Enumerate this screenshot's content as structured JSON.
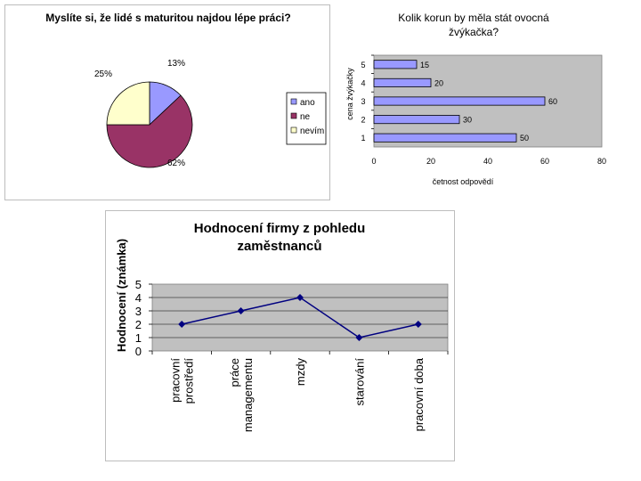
{
  "chart_data": [
    {
      "type": "pie",
      "title": "Myslíte si, že lidé s maturitou najdou lépe práci?",
      "categories": [
        "ano",
        "ne",
        "nevím"
      ],
      "values": [
        13,
        62,
        25
      ],
      "value_labels": [
        "13%",
        "62%",
        "25%"
      ],
      "colors": [
        "#9999ff",
        "#993366",
        "#ffffcc"
      ],
      "legend_position": "right"
    },
    {
      "type": "bar",
      "orientation": "horizontal",
      "title": "Kolik korun by měla stát ovocná žvýkačka?",
      "xlabel": "četnost odpovědí",
      "ylabel": "cena žvýkačky",
      "categories": [
        "1",
        "2",
        "3",
        "4",
        "5"
      ],
      "values": [
        50,
        30,
        60,
        20,
        15
      ],
      "xlim": [
        0,
        80
      ],
      "xticks": [
        "0",
        "20",
        "40",
        "60",
        "80"
      ],
      "bar_color": "#9999ff",
      "plot_background": "#c0c0c0",
      "grid": false
    },
    {
      "type": "line",
      "title": "Hodnocení firmy z pohledu zaměstnanců",
      "ylabel": "Hodnocení (známka)",
      "categories": [
        "pracovní prostředí",
        "práce managementu",
        "mzdy",
        "starování",
        "pracovní doba"
      ],
      "category_lines": [
        [
          "pracovní",
          "prostředí"
        ],
        [
          "práce",
          "managementu"
        ],
        [
          "mzdy"
        ],
        [
          "starování"
        ],
        [
          "pracovní doba"
        ]
      ],
      "values": [
        2,
        3,
        4,
        1,
        2
      ],
      "ylim": [
        0,
        5
      ],
      "yticks": [
        "0",
        "1",
        "2",
        "3",
        "4",
        "5"
      ],
      "line_color": "#000080",
      "plot_background": "#c0c0c0",
      "grid": true
    }
  ]
}
